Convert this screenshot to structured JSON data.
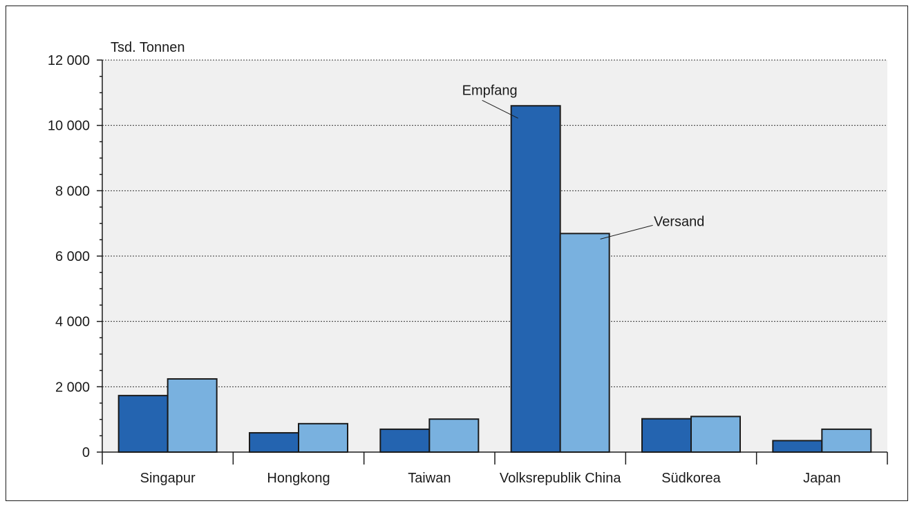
{
  "chart_data": {
    "type": "bar",
    "ylabel": "Tsd. Tonnen",
    "ylim": [
      0,
      12000
    ],
    "yticks": [
      "0",
      "2 000",
      "4 000",
      "6 000",
      "8 000",
      "10 000",
      "12 000"
    ],
    "ytick_values": [
      0,
      2000,
      4000,
      6000,
      8000,
      10000,
      12000
    ],
    "categories": [
      "Singapur",
      "Hongkong",
      "Taiwan",
      "Volksrepublik China",
      "Südkorea",
      "Japan"
    ],
    "series": [
      {
        "name": "Empfang",
        "color": "#2464b0",
        "values": [
          1730,
          590,
          700,
          10600,
          1020,
          350
        ]
      },
      {
        "name": "Versand",
        "color": "#79b1df",
        "values": [
          2240,
          870,
          1010,
          6690,
          1090,
          700
        ]
      }
    ],
    "grid": "dotted horizontal",
    "plot_background": "#f0f0f0",
    "legend": "annotations on bars"
  }
}
